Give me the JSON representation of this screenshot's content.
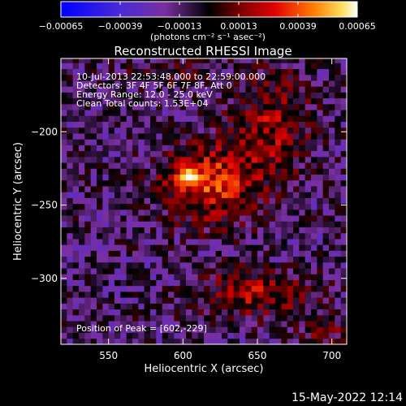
{
  "chart_data": {
    "type": "heatmap",
    "title": "Reconstructed RHESSI Image",
    "xlabel": "Heliocentric X (arcsec)",
    "ylabel": "Heliocentric Y (arcsec)",
    "xlim": [
      518,
      710
    ],
    "ylim": [
      -345,
      -150
    ],
    "x_ticks": [
      550,
      600,
      650,
      700
    ],
    "y_ticks": [
      -200,
      -250,
      -300
    ],
    "x_tick_labels": [
      "550",
      "600",
      "650",
      "700"
    ],
    "y_tick_labels": [
      "−200",
      "−250",
      "−300"
    ],
    "colorbar": {
      "unit_label": "(photons cm⁻² s⁻¹ asec⁻²)",
      "range": [
        -0.00065,
        0.00065
      ],
      "ticks": [
        -0.00065,
        -0.00039,
        -0.00013,
        0.00013,
        0.00039,
        0.00065
      ],
      "tick_labels": [
        "−0.00065",
        "−0.00039",
        "−0.00013",
        "0.00013",
        "0.00039",
        "0.00065"
      ]
    },
    "annotations": [
      "10-Jul-2013 22:53:48.000 to 22:59:00.000",
      "Detectors: 3F 4F 5F 6F 7F 8F, Att 0",
      "Energy Range: 12.0 - 25.0 keV",
      "Clean    Total counts: 1.53E+04"
    ],
    "peak_label": "Position of Peak = [602,-229]",
    "peak": {
      "x": 602,
      "y": -229
    },
    "sources": [
      {
        "x": 617,
        "y": -235,
        "sigma_x": 22,
        "sigma_y": 18,
        "value": 0.00045
      },
      {
        "x": 602,
        "y": -229,
        "sigma_x": 6,
        "sigma_y": 5,
        "value": 0.0003
      },
      {
        "x": 660,
        "y": -195,
        "sigma_x": 18,
        "sigma_y": 25,
        "value": 0.00028
      },
      {
        "x": 648,
        "y": -310,
        "sigma_x": 26,
        "sigma_y": 12,
        "value": 0.0003
      },
      {
        "x": 590,
        "y": -160,
        "sigma_x": 20,
        "sigma_y": 8,
        "value": 0.00012
      },
      {
        "x": 695,
        "y": -335,
        "sigma_x": 10,
        "sigma_y": 8,
        "value": 0.00018
      }
    ],
    "background": -0.00012,
    "footer_date": "15-May-2022 12:14"
  }
}
